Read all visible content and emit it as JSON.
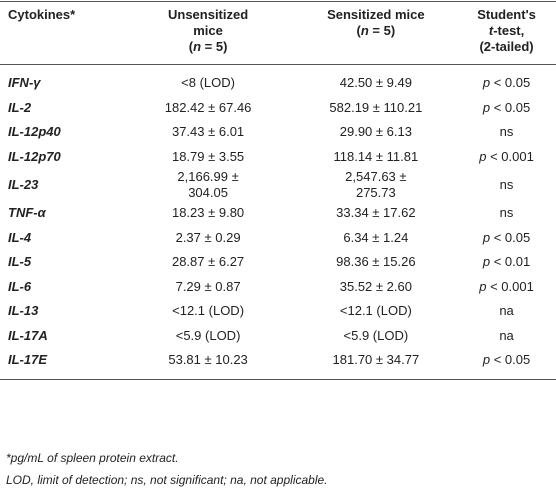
{
  "table": {
    "header": [
      {
        "lines": [
          "Cytokines*"
        ]
      },
      {
        "lines": [
          "Unsensitized",
          "mice",
          [
            "(",
            {
              "t": "n",
              "italic": true
            },
            " = 5)"
          ]
        ]
      },
      {
        "lines": [
          "Sensitized mice",
          [
            "(",
            {
              "t": "n",
              "italic": true
            },
            " = 5)"
          ]
        ]
      },
      {
        "lines": [
          "Student's",
          [
            {
              "t": "t",
              "italic": true
            },
            "-test,"
          ],
          "(2-tailed)"
        ]
      }
    ],
    "rows": [
      [
        "IFN-γ",
        "<8 (LOD)",
        "42.50 ± 9.49",
        [
          {
            "t": "p",
            "italic": true
          },
          " < 0.05"
        ]
      ],
      [
        "IL-2",
        "182.42 ± 67.46",
        "582.19 ± 110.21",
        [
          {
            "t": "p",
            "italic": true
          },
          " < 0.05"
        ]
      ],
      [
        "IL-12p40",
        "37.43 ± 6.01",
        "29.90 ± 6.13",
        "ns"
      ],
      [
        "IL-12p70",
        "18.79 ± 3.55",
        "118.14 ± 11.81",
        [
          {
            "t": "p",
            "italic": true
          },
          " < 0.001"
        ]
      ],
      [
        "IL-23",
        {
          "lines": [
            "2,166.99 ±",
            "304.05"
          ]
        },
        {
          "lines": [
            "2,547.63 ±",
            "275.73"
          ]
        },
        "ns"
      ],
      [
        "TNF-α",
        "18.23 ± 9.80",
        "33.34 ± 17.62",
        "ns"
      ],
      [
        "IL-4",
        "2.37 ± 0.29",
        "6.34 ± 1.24",
        [
          {
            "t": "p",
            "italic": true
          },
          " < 0.05"
        ]
      ],
      [
        "IL-5",
        "28.87 ± 6.27",
        "98.36 ± 15.26",
        [
          {
            "t": "p",
            "italic": true
          },
          " < 0.01"
        ]
      ],
      [
        "IL-6",
        "7.29 ± 0.87",
        "35.52 ± 2.60",
        [
          {
            "t": "p",
            "italic": true
          },
          " < 0.001"
        ]
      ],
      [
        "IL-13",
        "<12.1 (LOD)",
        "<12.1 (LOD)",
        "na"
      ],
      [
        "IL-17A",
        "<5.9 (LOD)",
        "<5.9 (LOD)",
        "na"
      ],
      [
        "IL-17E",
        "53.81 ± 10.23",
        "181.70 ± 34.77",
        [
          {
            "t": "p",
            "italic": true
          },
          " < 0.05"
        ]
      ]
    ],
    "footnotes": [
      "*pg/mL of spleen protein extract.",
      "LOD, limit of detection; ns, not significant; na, not applicable."
    ]
  }
}
